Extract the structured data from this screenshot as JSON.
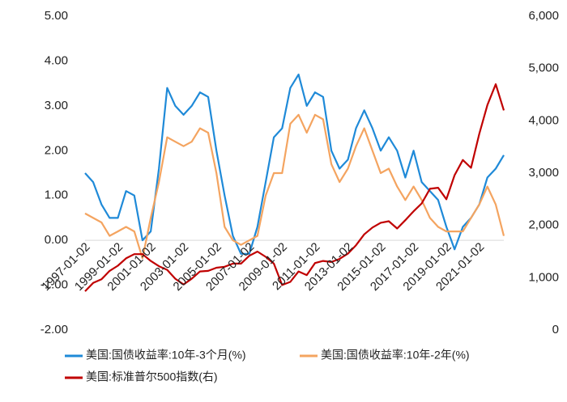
{
  "chart_data": {
    "type": "line",
    "x": [
      "1997-01-02",
      "1997-07-02",
      "1998-01-02",
      "1998-07-02",
      "1999-01-02",
      "1999-07-02",
      "2000-01-02",
      "2000-07-02",
      "2001-01-02",
      "2001-07-02",
      "2002-01-02",
      "2002-07-02",
      "2003-01-02",
      "2003-07-02",
      "2004-01-02",
      "2004-07-02",
      "2005-01-02",
      "2005-07-02",
      "2006-01-02",
      "2006-07-02",
      "2007-01-02",
      "2007-07-02",
      "2008-01-02",
      "2008-07-02",
      "2009-01-02",
      "2009-07-02",
      "2010-01-02",
      "2010-07-02",
      "2011-01-02",
      "2011-07-02",
      "2012-01-02",
      "2012-07-02",
      "2013-01-02",
      "2013-07-02",
      "2014-01-02",
      "2014-07-02",
      "2015-01-02",
      "2015-07-02",
      "2016-01-02",
      "2016-07-02",
      "2017-01-02",
      "2017-07-02",
      "2018-01-02",
      "2018-07-02",
      "2019-01-02",
      "2019-07-02",
      "2020-01-02",
      "2020-07-02",
      "2021-01-02",
      "2021-07-02",
      "2022-01-02",
      "2022-07-02"
    ],
    "series": [
      {
        "name": "美国:国债收益率:10年-3个月(%)",
        "color": "#1f8ad8",
        "values": [
          1.5,
          1.3,
          0.8,
          0.5,
          0.5,
          1.1,
          1.0,
          0.0,
          0.2,
          1.6,
          3.4,
          3.0,
          2.8,
          3.0,
          3.3,
          3.2,
          2.0,
          1.0,
          0.1,
          -0.3,
          -0.3,
          0.3,
          1.3,
          2.3,
          2.5,
          3.4,
          3.7,
          3.0,
          3.3,
          3.2,
          2.0,
          1.6,
          1.8,
          2.5,
          2.9,
          2.5,
          2.0,
          2.3,
          2.0,
          1.4,
          2.0,
          1.3,
          1.1,
          0.9,
          0.3,
          -0.2,
          0.3,
          0.5,
          0.8,
          1.4,
          1.6,
          1.9
        ]
      },
      {
        "name": "美国:国债收益率:10年-2年(%)",
        "color": "#f4a460",
        "values": [
          0.6,
          0.5,
          0.4,
          0.1,
          0.2,
          0.3,
          0.2,
          -0.4,
          0.5,
          1.3,
          2.3,
          2.2,
          2.1,
          2.2,
          2.5,
          2.4,
          1.5,
          0.3,
          0.0,
          -0.1,
          0.0,
          0.1,
          1.0,
          1.5,
          1.5,
          2.6,
          2.8,
          2.4,
          2.8,
          2.7,
          1.7,
          1.3,
          1.6,
          2.1,
          2.5,
          2.0,
          1.5,
          1.6,
          1.2,
          0.9,
          1.2,
          0.9,
          0.5,
          0.3,
          0.2,
          0.2,
          0.2,
          0.5,
          0.8,
          1.2,
          0.8,
          0.1
        ]
      },
      {
        "name": "美国:标准普尔500指数(右)",
        "color": "#c00000",
        "axis": "y2",
        "values": [
          740,
          900,
          970,
          1130,
          1230,
          1370,
          1450,
          1450,
          1320,
          1220,
          1150,
          980,
          870,
          980,
          1120,
          1130,
          1190,
          1210,
          1270,
          1270,
          1420,
          1500,
          1400,
          1270,
          860,
          920,
          1120,
          1050,
          1280,
          1320,
          1300,
          1360,
          1460,
          1620,
          1830,
          1960,
          2050,
          2080,
          1940,
          2100,
          2270,
          2420,
          2700,
          2720,
          2500,
          2960,
          3250,
          3100,
          3750,
          4300,
          4700,
          4200
        ]
      }
    ],
    "xlim": [
      "1997-01-02",
      "2022-07-02"
    ],
    "xticks": [
      "1997-01-02",
      "1999-01-02",
      "2001-01-02",
      "2003-01-02",
      "2005-01-02",
      "2007-01-02",
      "2009-01-02",
      "2011-01-02",
      "2013-01-02",
      "2015-01-02",
      "2017-01-02",
      "2019-01-02",
      "2021-01-02"
    ],
    "ylim": [
      -2,
      5
    ],
    "yticks": [
      {
        "value": -2,
        "label": "-2.00"
      },
      {
        "value": -1,
        "label": "-1.00"
      },
      {
        "value": 0,
        "label": "0.00"
      },
      {
        "value": 1,
        "label": "1.00"
      },
      {
        "value": 2,
        "label": "2.00"
      },
      {
        "value": 3,
        "label": "3.00"
      },
      {
        "value": 4,
        "label": "4.00"
      },
      {
        "value": 5,
        "label": "5.00"
      }
    ],
    "y2lim": [
      0,
      6000
    ],
    "y2ticks": [
      0,
      {
        "value": 1000,
        "label": "1,000"
      },
      {
        "value": 2000,
        "label": "2,000"
      },
      {
        "value": 3000,
        "label": "3,000"
      },
      {
        "value": 4000,
        "label": "4,000"
      },
      {
        "value": 5000,
        "label": "5,000"
      },
      {
        "value": 6000,
        "label": "6,000"
      }
    ],
    "legend": "bottom"
  }
}
